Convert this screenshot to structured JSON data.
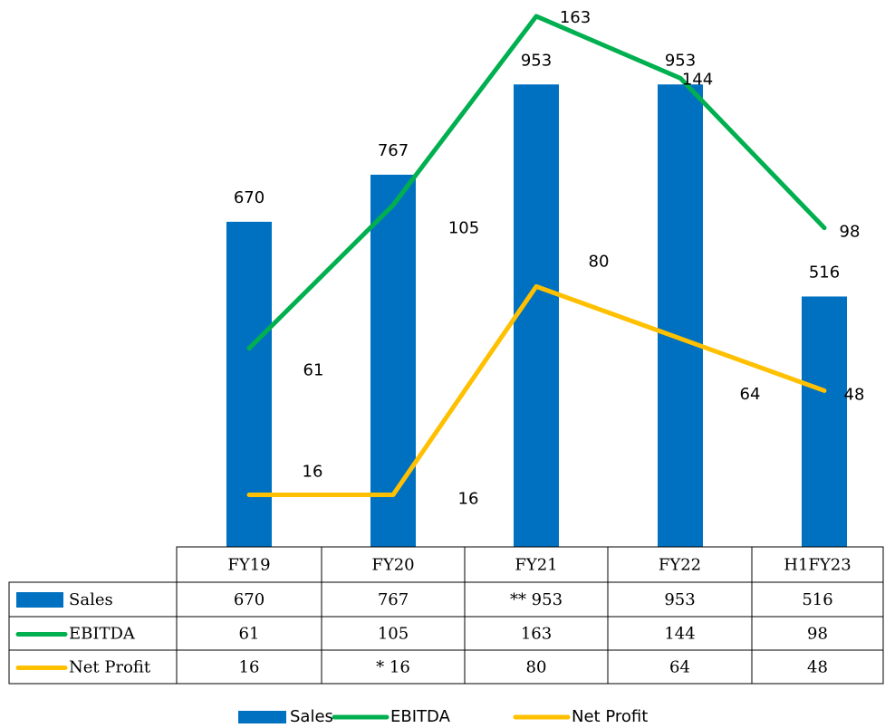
{
  "chart_data": {
    "type": "bar",
    "categories": [
      "FY19",
      "FY20",
      "FY21",
      "FY22",
      "H1FY23"
    ],
    "series": [
      {
        "name": "Sales",
        "color": "#0070c0",
        "type": "bar",
        "values": [
          670,
          767,
          953,
          953,
          516
        ],
        "value_labels": [
          "670",
          "767",
          "** 953",
          "953",
          "516"
        ]
      },
      {
        "name": "EBITDA",
        "color": "#00b050",
        "type": "line",
        "axis": "y2",
        "values": [
          61,
          105,
          163,
          144,
          98
        ]
      },
      {
        "name": "Net Profit",
        "color": "#ffc000",
        "type": "line",
        "axis": "y2",
        "values": [
          16,
          16,
          80,
          64,
          48
        ],
        "value_labels": [
          "16",
          "* 16",
          "80",
          "64",
          "48"
        ]
      }
    ],
    "ylim": [
      0,
      1127
    ],
    "y2lim": [
      0,
      168
    ],
    "legend": "bottom"
  }
}
